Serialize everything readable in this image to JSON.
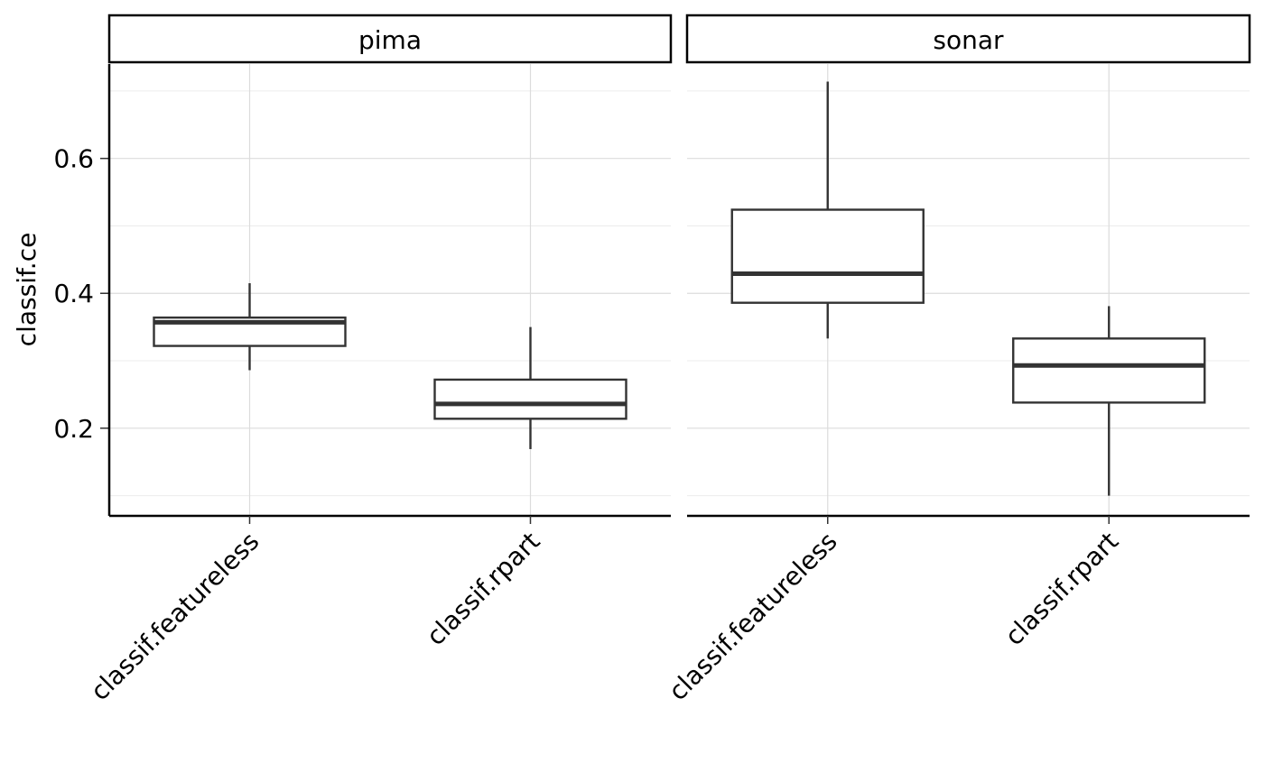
{
  "chart_data": {
    "type": "boxplot",
    "ylabel": "classif.ce",
    "xlabel": "",
    "ylim": [
      0.07,
      0.74
    ],
    "y_ticks": [
      0.2,
      0.4,
      0.6
    ],
    "y_tick_labels": [
      "0.2",
      "0.4",
      "0.6"
    ],
    "y_minor_ticks": [
      0.1,
      0.3,
      0.5,
      0.7
    ],
    "categories": [
      "classif.featureless",
      "classif.rpart"
    ],
    "grid": true,
    "panels": [
      {
        "name": "pima",
        "boxes": [
          {
            "category": "classif.featureless",
            "min": 0.286,
            "q1": 0.322,
            "median": 0.357,
            "q3": 0.364,
            "max": 0.415
          },
          {
            "category": "classif.rpart",
            "min": 0.169,
            "q1": 0.214,
            "median": 0.236,
            "q3": 0.272,
            "max": 0.35
          }
        ]
      },
      {
        "name": "sonar",
        "boxes": [
          {
            "category": "classif.featureless",
            "min": 0.333,
            "q1": 0.386,
            "median": 0.429,
            "q3": 0.524,
            "max": 0.714
          },
          {
            "category": "classif.rpart",
            "min": 0.1,
            "q1": 0.238,
            "median": 0.293,
            "q3": 0.333,
            "max": 0.381
          }
        ]
      }
    ]
  }
}
